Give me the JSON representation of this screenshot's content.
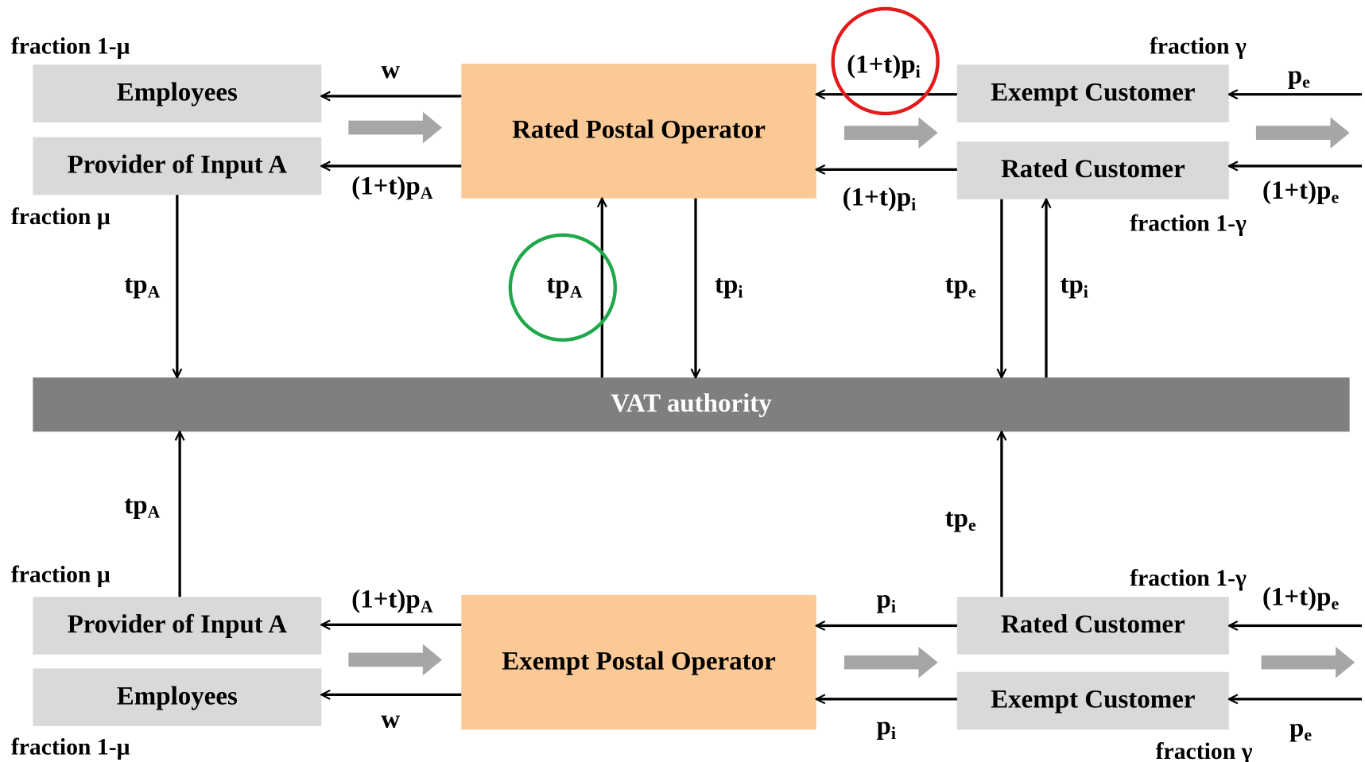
{
  "nodes": [
    {
      "label": "Employees"
    },
    {
      "label": "Provider of Input A"
    },
    {
      "label": "Rated Postal Operator"
    },
    {
      "label": "Exempt Customer"
    },
    {
      "label": "Rated Customer"
    },
    {
      "label": "VAT authority"
    },
    {
      "label": "Provider of Input A"
    },
    {
      "label": "Employees"
    },
    {
      "label": "Exempt Postal Operator"
    },
    {
      "label": "Rated Customer"
    },
    {
      "label": "Exempt Customer"
    }
  ],
  "fractions": [
    "fraction 1-μ",
    "fraction μ",
    "fraction γ",
    "fraction 1-γ",
    "fraction μ",
    "fraction 1-μ",
    "fraction 1-γ",
    "fraction γ"
  ],
  "edges": [
    {
      "main": "w"
    },
    {
      "main": "(1+t)p",
      "sub": "A"
    },
    {
      "main": "(1+t)p",
      "sub": "i"
    },
    {
      "main": "(1+t)p",
      "sub": "i"
    },
    {
      "main": "p",
      "sub": "e"
    },
    {
      "main": "(1+t)p",
      "sub": "e"
    },
    {
      "main": "tp",
      "sub": "A"
    },
    {
      "main": "tp",
      "sub": "A"
    },
    {
      "main": "tp",
      "sub": "i"
    },
    {
      "main": "tp",
      "sub": "e"
    },
    {
      "main": "tp",
      "sub": "i"
    },
    {
      "main": "tp",
      "sub": "A"
    },
    {
      "main": "tp",
      "sub": "e"
    },
    {
      "main": "(1+t)p",
      "sub": "A"
    },
    {
      "main": "w"
    },
    {
      "main": "p",
      "sub": "i"
    },
    {
      "main": "p",
      "sub": "i"
    },
    {
      "main": "(1+t)p",
      "sub": "e"
    },
    {
      "main": "p",
      "sub": "e"
    }
  ]
}
